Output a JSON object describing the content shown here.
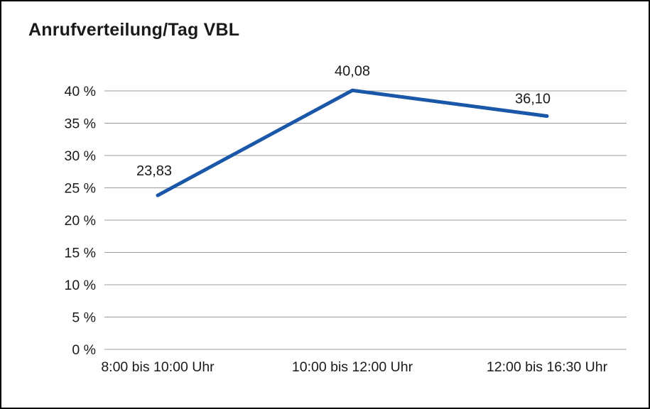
{
  "chart_data": {
    "type": "line",
    "title": "Anrufverteilung/Tag VBL",
    "categories": [
      "8:00 bis 10:00 Uhr",
      "10:00 bis 12:00 Uhr",
      "12:00 bis 16:30 Uhr"
    ],
    "values": [
      23.83,
      40.08,
      36.1
    ],
    "value_labels": [
      "23,83",
      "40,08",
      "36,10"
    ],
    "xlabel": "",
    "ylabel": "",
    "ylim": [
      0,
      40
    ],
    "ytick_step": 5,
    "ytick_suffix": " %",
    "grid": true,
    "legend_position": "none",
    "line_color": "#1B57A8",
    "grid_color": "#9c9c9c",
    "text_color": "#1a1a1a",
    "border_color": "#000000",
    "background": "#ffffff"
  }
}
